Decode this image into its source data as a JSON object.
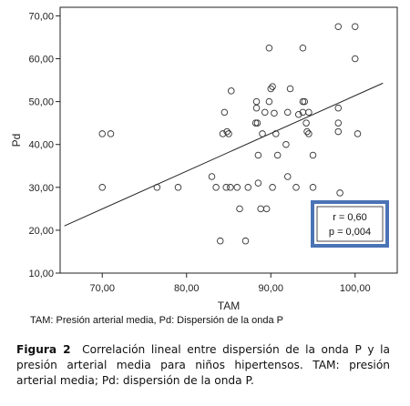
{
  "chart_data": {
    "type": "scatter",
    "xlabel": "TAM",
    "ylabel": "Pd",
    "xlim": [
      65,
      105
    ],
    "ylim": [
      10,
      72
    ],
    "x_ticks": [
      "70,00",
      "80,00",
      "90,00",
      "100,00"
    ],
    "x_tick_values": [
      70,
      80,
      90,
      100
    ],
    "y_ticks": [
      "10,00",
      "20,00",
      "30,00",
      "40,00",
      "50,00",
      "60,00",
      "70,00"
    ],
    "y_tick_values": [
      10,
      20,
      30,
      40,
      50,
      60,
      70
    ],
    "grid": false,
    "stats_box": {
      "r": "r = 0,60",
      "p": "p = 0,004"
    },
    "fit_line": {
      "x": [
        65.5,
        103.3
      ],
      "y": [
        21.0,
        54.3
      ]
    },
    "points": [
      [
        70,
        42.5
      ],
      [
        71,
        42.5
      ],
      [
        70,
        30
      ],
      [
        76.5,
        30
      ],
      [
        79,
        30
      ],
      [
        83,
        32.5
      ],
      [
        83.5,
        30
      ],
      [
        84,
        17.5
      ],
      [
        84.3,
        42.5
      ],
      [
        84.5,
        47.5
      ],
      [
        84.7,
        30
      ],
      [
        84.8,
        43
      ],
      [
        85,
        42.5
      ],
      [
        85.2,
        30
      ],
      [
        85.3,
        52.5
      ],
      [
        86,
        30
      ],
      [
        86.3,
        25
      ],
      [
        87,
        17.5
      ],
      [
        87.3,
        30
      ],
      [
        88.2,
        45
      ],
      [
        88.3,
        48.5
      ],
      [
        88.3,
        50
      ],
      [
        88.4,
        45
      ],
      [
        88.5,
        37.5
      ],
      [
        88.5,
        31
      ],
      [
        88.8,
        25
      ],
      [
        89,
        42.5
      ],
      [
        89.3,
        47.5
      ],
      [
        89.5,
        25
      ],
      [
        89.8,
        62.5
      ],
      [
        89.8,
        50
      ],
      [
        90,
        53
      ],
      [
        90.2,
        53.5
      ],
      [
        90.2,
        30
      ],
      [
        90.4,
        47.3
      ],
      [
        90.6,
        42.5
      ],
      [
        90.8,
        37.5
      ],
      [
        91.8,
        40
      ],
      [
        92,
        32.5
      ],
      [
        92,
        47.5
      ],
      [
        92.3,
        53
      ],
      [
        93,
        30
      ],
      [
        93.3,
        47
      ],
      [
        93.8,
        62.5
      ],
      [
        93.8,
        47.5
      ],
      [
        93.8,
        50
      ],
      [
        94,
        50
      ],
      [
        94.2,
        45
      ],
      [
        94.3,
        43
      ],
      [
        94.5,
        42.5
      ],
      [
        94.5,
        47.5
      ],
      [
        95,
        30
      ],
      [
        95,
        37.5
      ],
      [
        98,
        67.5
      ],
      [
        98,
        43
      ],
      [
        98,
        45
      ],
      [
        98,
        48.5
      ],
      [
        98.2,
        28.7
      ],
      [
        100,
        67.5
      ],
      [
        100,
        60
      ],
      [
        100.3,
        42.5
      ]
    ]
  },
  "note": "TAM: Presión arterial media, Pd: Dispersión de la onda P",
  "caption": {
    "label": "Figura 2",
    "text": "Correlación lineal entre dispersión de la onda P y la presión arterial media para niños hipertensos. TAM: presión arterial media; Pd: dispersión de la onda P."
  },
  "colors": {
    "stats_border": "#4a73b5",
    "line": "#222222",
    "points": "#333333"
  }
}
